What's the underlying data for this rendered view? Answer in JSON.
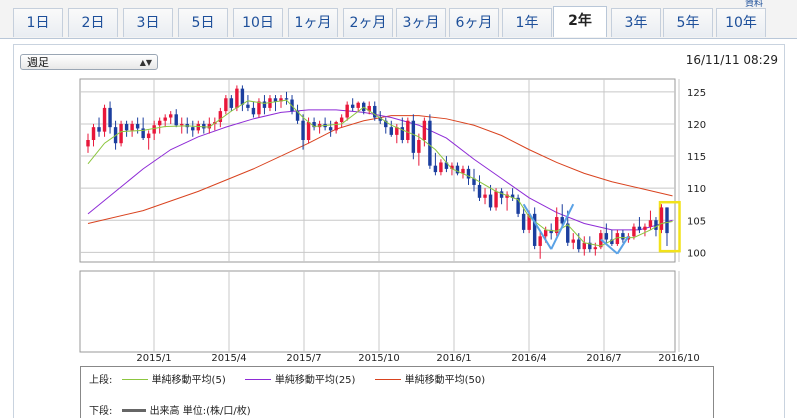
{
  "tabs": [
    {
      "label": "1日"
    },
    {
      "label": "2日"
    },
    {
      "label": "3日"
    },
    {
      "label": "5日"
    },
    {
      "label": "10日"
    },
    {
      "label": "1ヶ月"
    },
    {
      "label": "2ヶ月"
    },
    {
      "label": "3ヶ月"
    },
    {
      "label": "6ヶ月"
    },
    {
      "label": "1年"
    },
    {
      "label": "2年"
    },
    {
      "label": "3年"
    },
    {
      "label": "5年"
    },
    {
      "label": "10年"
    }
  ],
  "active_tab": "2年",
  "corner_label": "資料",
  "period_select": "週足",
  "datetime": "16/11/11 08:29",
  "colors": {
    "up": "#e8173a",
    "down": "#1b3e9e",
    "ma5": "#8cc63f",
    "ma25": "#8e2bd6",
    "ma50": "#d9431f",
    "highlight": "#f2e21a",
    "annotation": "#5aa2e6",
    "grid": "#c8c8c8"
  },
  "legend": {
    "upper_label": "上段:",
    "ma5": "単純移動平均(5)",
    "ma25": "単純移動平均(25)",
    "ma50": "単純移動平均(50)",
    "lower_label": "下段:",
    "volume": "出来高 単位:(株/口/枚)"
  },
  "chart_data": {
    "type": "candlestick",
    "y_ticks": [
      "125",
      "120",
      "115",
      "110",
      "105",
      "100"
    ],
    "ylim": [
      98.5,
      127
    ],
    "x_ticks": [
      "2015/1",
      "2015/4",
      "2015/7",
      "2015/10",
      "2016/1",
      "2016/4",
      "2016/7",
      "2016/10"
    ],
    "ohlc": [
      [
        116.5,
        118.5,
        115.5,
        117.5
      ],
      [
        117.5,
        120.0,
        116.5,
        119.5
      ],
      [
        119.5,
        121.0,
        118.0,
        118.8
      ],
      [
        118.8,
        123.0,
        118.0,
        122.5
      ],
      [
        122.5,
        123.5,
        118.5,
        119.5
      ],
      [
        119.5,
        120.5,
        116.0,
        117.0
      ],
      [
        117.0,
        120.5,
        116.5,
        120.0
      ],
      [
        120.0,
        120.5,
        118.0,
        119.0
      ],
      [
        119.0,
        120.5,
        118.0,
        120.0
      ],
      [
        120.0,
        121.0,
        118.5,
        119.3
      ],
      [
        119.3,
        121.0,
        117.5,
        117.8
      ],
      [
        117.8,
        119.0,
        116.0,
        118.5
      ],
      [
        118.5,
        120.5,
        117.5,
        119.8
      ],
      [
        119.8,
        121.0,
        118.5,
        120.5
      ],
      [
        120.5,
        121.5,
        119.5,
        121.0
      ],
      [
        121.0,
        122.0,
        120.0,
        121.5
      ],
      [
        121.5,
        122.3,
        119.5,
        119.8
      ],
      [
        119.8,
        121.0,
        118.5,
        120.0
      ],
      [
        120.0,
        121.0,
        118.5,
        119.5
      ],
      [
        119.5,
        120.5,
        118.0,
        119.0
      ],
      [
        119.0,
        120.5,
        118.5,
        120.0
      ],
      [
        120.0,
        120.5,
        118.5,
        119.3
      ],
      [
        119.3,
        121.0,
        118.5,
        120.0
      ],
      [
        120.0,
        121.0,
        119.0,
        120.3
      ],
      [
        120.3,
        122.5,
        119.5,
        122.0
      ],
      [
        122.0,
        124.5,
        121.5,
        124.0
      ],
      [
        124.0,
        124.5,
        122.0,
        122.5
      ],
      [
        122.5,
        126.0,
        122.0,
        125.5
      ],
      [
        125.5,
        126.0,
        122.0,
        123.0
      ],
      [
        123.0,
        124.5,
        122.0,
        122.5
      ],
      [
        122.5,
        123.5,
        121.0,
        121.5
      ],
      [
        121.5,
        124.0,
        121.0,
        123.5
      ],
      [
        123.5,
        124.5,
        121.5,
        122.5
      ],
      [
        122.5,
        124.5,
        122.0,
        124.0
      ],
      [
        124.0,
        124.5,
        122.0,
        123.5
      ],
      [
        123.5,
        124.5,
        122.5,
        124.0
      ],
      [
        124.0,
        125.0,
        123.0,
        123.8
      ],
      [
        123.8,
        124.5,
        121.5,
        122.0
      ],
      [
        122.0,
        123.0,
        120.0,
        120.5
      ],
      [
        120.5,
        121.5,
        116.0,
        117.5
      ],
      [
        117.5,
        121.0,
        117.0,
        120.3
      ],
      [
        120.3,
        121.0,
        119.0,
        119.5
      ],
      [
        119.5,
        120.5,
        118.5,
        120.0
      ],
      [
        120.0,
        121.0,
        119.0,
        119.5
      ],
      [
        119.5,
        120.5,
        118.0,
        119.0
      ],
      [
        119.0,
        120.5,
        118.5,
        120.3
      ],
      [
        120.3,
        121.5,
        119.5,
        121.0
      ],
      [
        121.0,
        123.5,
        120.5,
        123.0
      ],
      [
        123.0,
        124.0,
        122.0,
        122.5
      ],
      [
        122.5,
        123.5,
        122.0,
        123.3
      ],
      [
        123.3,
        123.5,
        121.5,
        122.0
      ],
      [
        122.0,
        123.5,
        121.5,
        122.8
      ],
      [
        122.8,
        123.5,
        120.5,
        121.0
      ],
      [
        121.0,
        122.0,
        120.0,
        120.5
      ],
      [
        120.5,
        121.0,
        118.5,
        119.5
      ],
      [
        119.5,
        120.5,
        118.0,
        118.3
      ],
      [
        118.3,
        120.0,
        117.0,
        119.5
      ],
      [
        119.5,
        121.0,
        117.0,
        117.5
      ],
      [
        117.5,
        121.0,
        117.0,
        120.5
      ],
      [
        120.5,
        121.5,
        114.5,
        115.5
      ],
      [
        115.5,
        118.5,
        113.5,
        117.5
      ],
      [
        117.5,
        121.0,
        116.5,
        120.5
      ],
      [
        120.5,
        121.5,
        113.0,
        113.5
      ],
      [
        113.5,
        115.5,
        112.0,
        112.5
      ],
      [
        112.5,
        114.5,
        112.0,
        114.0
      ],
      [
        114.0,
        115.0,
        112.5,
        113.0
      ],
      [
        113.0,
        114.0,
        112.0,
        113.5
      ],
      [
        113.5,
        114.0,
        112.0,
        112.3
      ],
      [
        112.3,
        113.5,
        111.5,
        113.0
      ],
      [
        113.0,
        113.5,
        110.5,
        111.5
      ],
      [
        111.5,
        113.0,
        109.5,
        110.5
      ],
      [
        110.5,
        112.0,
        108.0,
        108.5
      ],
      [
        108.5,
        110.0,
        107.5,
        109.0
      ],
      [
        109.0,
        110.5,
        106.5,
        107.0
      ],
      [
        107.0,
        110.0,
        106.5,
        109.5
      ],
      [
        109.5,
        110.0,
        107.5,
        108.5
      ],
      [
        108.5,
        109.5,
        106.5,
        109.0
      ],
      [
        109.0,
        110.0,
        108.0,
        108.5
      ],
      [
        108.5,
        109.0,
        105.5,
        106.0
      ],
      [
        106.0,
        107.0,
        103.0,
        103.5
      ],
      [
        103.5,
        106.5,
        103.0,
        106.0
      ],
      [
        106.0,
        107.0,
        100.5,
        101.0
      ],
      [
        101.0,
        103.5,
        99.0,
        102.5
      ],
      [
        102.5,
        104.0,
        101.5,
        103.5
      ],
      [
        103.5,
        104.5,
        102.0,
        103.0
      ],
      [
        103.0,
        107.0,
        102.5,
        105.5
      ],
      [
        105.5,
        107.5,
        104.0,
        104.5
      ],
      [
        104.5,
        106.5,
        101.0,
        101.5
      ],
      [
        101.5,
        103.0,
        100.5,
        102.0
      ],
      [
        102.0,
        103.0,
        100.0,
        100.5
      ],
      [
        100.5,
        102.5,
        99.5,
        101.5
      ],
      [
        101.5,
        102.5,
        100.0,
        100.5
      ],
      [
        100.5,
        101.5,
        99.5,
        100.8
      ],
      [
        100.8,
        103.5,
        100.5,
        103.0
      ],
      [
        103.0,
        104.5,
        101.5,
        102.0
      ],
      [
        102.0,
        103.5,
        101.0,
        101.3
      ],
      [
        101.3,
        103.5,
        101.0,
        103.0
      ],
      [
        103.0,
        103.5,
        101.5,
        102.0
      ],
      [
        102.0,
        103.0,
        101.5,
        102.5
      ],
      [
        102.5,
        104.5,
        102.0,
        104.0
      ],
      [
        104.0,
        105.5,
        103.0,
        103.5
      ],
      [
        103.5,
        104.5,
        102.5,
        104.0
      ],
      [
        104.0,
        106.5,
        103.5,
        105.0
      ],
      [
        105.0,
        105.5,
        102.5,
        103.5
      ],
      [
        103.5,
        107.5,
        103.0,
        107.0
      ],
      [
        107.0,
        107.0,
        101.0,
        103.0
      ]
    ],
    "ma5": [
      [
        0,
        113.8
      ],
      [
        3,
        117.0
      ],
      [
        6,
        118.8
      ],
      [
        10,
        119.0
      ],
      [
        14,
        119.6
      ],
      [
        18,
        119.7
      ],
      [
        22,
        119.5
      ],
      [
        26,
        122.0
      ],
      [
        29,
        123.6
      ],
      [
        32,
        123.2
      ],
      [
        36,
        123.7
      ],
      [
        39,
        121.0
      ],
      [
        41,
        119.6
      ],
      [
        46,
        120.0
      ],
      [
        50,
        122.6
      ],
      [
        55,
        119.8
      ],
      [
        60,
        118.0
      ],
      [
        63,
        116.0
      ],
      [
        66,
        113.0
      ],
      [
        70,
        111.5
      ],
      [
        74,
        109.5
      ],
      [
        78,
        108.2
      ],
      [
        80,
        105.5
      ],
      [
        83,
        103.5
      ],
      [
        85,
        103.3
      ],
      [
        87,
        104.3
      ],
      [
        90,
        101.5
      ],
      [
        93,
        101.0
      ],
      [
        96,
        102.3
      ],
      [
        99,
        102.3
      ],
      [
        102,
        103.5
      ],
      [
        104,
        104.5
      ],
      [
        106,
        104.8
      ]
    ],
    "ma25": [
      [
        0,
        106.0
      ],
      [
        5,
        109.5
      ],
      [
        10,
        113.0
      ],
      [
        15,
        116.0
      ],
      [
        20,
        118.0
      ],
      [
        25,
        119.5
      ],
      [
        30,
        120.8
      ],
      [
        35,
        121.8
      ],
      [
        40,
        122.2
      ],
      [
        45,
        122.2
      ],
      [
        50,
        121.8
      ],
      [
        55,
        121.0
      ],
      [
        60,
        119.8
      ],
      [
        65,
        117.8
      ],
      [
        70,
        114.5
      ],
      [
        75,
        111.5
      ],
      [
        80,
        108.5
      ],
      [
        85,
        106.2
      ],
      [
        90,
        104.5
      ],
      [
        95,
        103.5
      ],
      [
        100,
        103.5
      ],
      [
        103,
        104.2
      ],
      [
        106,
        105.0
      ]
    ],
    "ma50": [
      [
        0,
        104.5
      ],
      [
        10,
        106.5
      ],
      [
        20,
        109.5
      ],
      [
        30,
        113.0
      ],
      [
        40,
        117.0
      ],
      [
        45,
        119.2
      ],
      [
        50,
        120.5
      ],
      [
        55,
        121.3
      ],
      [
        60,
        121.3
      ],
      [
        65,
        120.8
      ],
      [
        70,
        119.8
      ],
      [
        75,
        118.2
      ],
      [
        80,
        116.0
      ],
      [
        85,
        114.0
      ],
      [
        90,
        112.3
      ],
      [
        95,
        111.0
      ],
      [
        100,
        110.0
      ],
      [
        106,
        108.8
      ]
    ],
    "annotation_lines": [
      [
        [
          79,
          107.5
        ],
        [
          84,
          100.5
        ]
      ],
      [
        [
          84,
          100.5
        ],
        [
          88,
          107.5
        ]
      ],
      [
        [
          93,
          102.0
        ],
        [
          96,
          99.8
        ]
      ],
      [
        [
          96,
          99.8
        ],
        [
          98,
          102.5
        ]
      ]
    ],
    "highlight_range": {
      "from": 105,
      "to": 106,
      "low": 100.5,
      "high": 107.5
    }
  }
}
